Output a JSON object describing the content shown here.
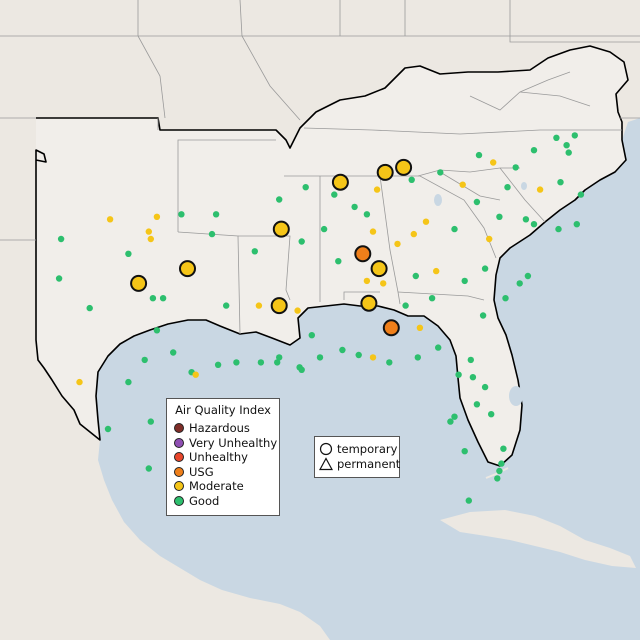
{
  "legend": {
    "title": "Air Quality Index",
    "categories": [
      {
        "label": "Hazardous",
        "color": "#7e2d27"
      },
      {
        "label": "Very Unhealthy",
        "color": "#8f4fb3"
      },
      {
        "label": "Unhealthy",
        "color": "#e8462b"
      },
      {
        "label": "USG",
        "color": "#ef7f1a"
      },
      {
        "label": "Moderate",
        "color": "#f5c518"
      },
      {
        "label": "Good",
        "color": "#2dbf6e"
      }
    ]
  },
  "type_legend": {
    "items": [
      {
        "label": "temporary",
        "shape": "circle-icon"
      },
      {
        "label": "permanent",
        "shape": "triangle-icon"
      }
    ]
  },
  "colors": {
    "water": "#c9d7e3",
    "land": "#ece8e2",
    "region_land": "#f1eeea",
    "border": "#000000"
  },
  "monitors": {
    "large": [
      {
        "lon": -88.1,
        "lat": 37.5,
        "aqi": "Moderate"
      },
      {
        "lon": -85.9,
        "lat": 37.9,
        "aqi": "Moderate"
      },
      {
        "lon": -85.0,
        "lat": 38.1,
        "aqi": "Moderate"
      },
      {
        "lon": -91.0,
        "lat": 35.6,
        "aqi": "Moderate"
      },
      {
        "lon": -95.6,
        "lat": 34.0,
        "aqi": "Moderate"
      },
      {
        "lon": -98.0,
        "lat": 33.4,
        "aqi": "Moderate"
      },
      {
        "lon": -91.1,
        "lat": 32.5,
        "aqi": "Moderate"
      },
      {
        "lon": -87.0,
        "lat": 34.6,
        "aqi": "USG"
      },
      {
        "lon": -86.2,
        "lat": 34.0,
        "aqi": "Moderate"
      },
      {
        "lon": -86.7,
        "lat": 32.6,
        "aqi": "Moderate"
      },
      {
        "lon": -85.6,
        "lat": 31.6,
        "aqi": "USG"
      }
    ],
    "small": [
      {
        "lon": -91.1,
        "lat": 36.8,
        "aqi": "Good"
      },
      {
        "lon": -89.8,
        "lat": 37.3,
        "aqi": "Good"
      },
      {
        "lon": -88.4,
        "lat": 37.0,
        "aqi": "Good"
      },
      {
        "lon": -86.3,
        "lat": 37.2,
        "aqi": "Moderate"
      },
      {
        "lon": -84.6,
        "lat": 37.6,
        "aqi": "Good"
      },
      {
        "lon": -83.2,
        "lat": 37.9,
        "aqi": "Good"
      },
      {
        "lon": -82.1,
        "lat": 37.4,
        "aqi": "Moderate"
      },
      {
        "lon": -81.3,
        "lat": 38.6,
        "aqi": "Good"
      },
      {
        "lon": -80.6,
        "lat": 38.3,
        "aqi": "Moderate"
      },
      {
        "lon": -79.5,
        "lat": 38.1,
        "aqi": "Good"
      },
      {
        "lon": -78.6,
        "lat": 38.8,
        "aqi": "Good"
      },
      {
        "lon": -77.5,
        "lat": 39.3,
        "aqi": "Good"
      },
      {
        "lon": -77.0,
        "lat": 39.0,
        "aqi": "Good"
      },
      {
        "lon": -76.6,
        "lat": 39.4,
        "aqi": "Good"
      },
      {
        "lon": -76.9,
        "lat": 38.7,
        "aqi": "Good"
      },
      {
        "lon": -77.3,
        "lat": 37.5,
        "aqi": "Good"
      },
      {
        "lon": -76.3,
        "lat": 37.0,
        "aqi": "Good"
      },
      {
        "lon": -78.3,
        "lat": 37.2,
        "aqi": "Moderate"
      },
      {
        "lon": -79.9,
        "lat": 37.3,
        "aqi": "Good"
      },
      {
        "lon": -81.4,
        "lat": 36.7,
        "aqi": "Good"
      },
      {
        "lon": -80.3,
        "lat": 36.1,
        "aqi": "Good"
      },
      {
        "lon": -79.0,
        "lat": 36.0,
        "aqi": "Good"
      },
      {
        "lon": -78.6,
        "lat": 35.8,
        "aqi": "Good"
      },
      {
        "lon": -77.4,
        "lat": 35.6,
        "aqi": "Good"
      },
      {
        "lon": -76.5,
        "lat": 35.8,
        "aqi": "Good"
      },
      {
        "lon": -80.8,
        "lat": 35.2,
        "aqi": "Moderate"
      },
      {
        "lon": -82.5,
        "lat": 35.6,
        "aqi": "Good"
      },
      {
        "lon": -83.9,
        "lat": 35.9,
        "aqi": "Moderate"
      },
      {
        "lon": -84.5,
        "lat": 35.4,
        "aqi": "Moderate"
      },
      {
        "lon": -85.3,
        "lat": 35.0,
        "aqi": "Moderate"
      },
      {
        "lon": -86.8,
        "lat": 36.2,
        "aqi": "Good"
      },
      {
        "lon": -87.4,
        "lat": 36.5,
        "aqi": "Good"
      },
      {
        "lon": -88.9,
        "lat": 35.6,
        "aqi": "Good"
      },
      {
        "lon": -90.0,
        "lat": 35.1,
        "aqi": "Good"
      },
      {
        "lon": -86.5,
        "lat": 35.5,
        "aqi": "Moderate"
      },
      {
        "lon": -88.2,
        "lat": 34.3,
        "aqi": "Good"
      },
      {
        "lon": -86.0,
        "lat": 33.4,
        "aqi": "Moderate"
      },
      {
        "lon": -86.8,
        "lat": 33.5,
        "aqi": "Moderate"
      },
      {
        "lon": -84.4,
        "lat": 33.7,
        "aqi": "Good"
      },
      {
        "lon": -83.4,
        "lat": 33.9,
        "aqi": "Moderate"
      },
      {
        "lon": -82.0,
        "lat": 33.5,
        "aqi": "Good"
      },
      {
        "lon": -81.0,
        "lat": 34.0,
        "aqi": "Good"
      },
      {
        "lon": -80.0,
        "lat": 32.8,
        "aqi": "Good"
      },
      {
        "lon": -79.3,
        "lat": 33.4,
        "aqi": "Good"
      },
      {
        "lon": -78.9,
        "lat": 33.7,
        "aqi": "Good"
      },
      {
        "lon": -81.1,
        "lat": 32.1,
        "aqi": "Good"
      },
      {
        "lon": -83.6,
        "lat": 32.8,
        "aqi": "Good"
      },
      {
        "lon": -84.9,
        "lat": 32.5,
        "aqi": "Good"
      },
      {
        "lon": -84.2,
        "lat": 31.6,
        "aqi": "Moderate"
      },
      {
        "lon": -83.3,
        "lat": 30.8,
        "aqi": "Good"
      },
      {
        "lon": -84.3,
        "lat": 30.4,
        "aqi": "Good"
      },
      {
        "lon": -85.7,
        "lat": 30.2,
        "aqi": "Good"
      },
      {
        "lon": -87.2,
        "lat": 30.5,
        "aqi": "Good"
      },
      {
        "lon": -88.0,
        "lat": 30.7,
        "aqi": "Good"
      },
      {
        "lon": -86.5,
        "lat": 30.4,
        "aqi": "Moderate"
      },
      {
        "lon": -81.7,
        "lat": 30.3,
        "aqi": "Good"
      },
      {
        "lon": -81.6,
        "lat": 29.6,
        "aqi": "Good"
      },
      {
        "lon": -81.0,
        "lat": 29.2,
        "aqi": "Good"
      },
      {
        "lon": -82.3,
        "lat": 29.7,
        "aqi": "Good"
      },
      {
        "lon": -81.4,
        "lat": 28.5,
        "aqi": "Good"
      },
      {
        "lon": -80.7,
        "lat": 28.1,
        "aqi": "Good"
      },
      {
        "lon": -82.5,
        "lat": 28.0,
        "aqi": "Good"
      },
      {
        "lon": -82.7,
        "lat": 27.8,
        "aqi": "Good"
      },
      {
        "lon": -82.0,
        "lat": 26.6,
        "aqi": "Good"
      },
      {
        "lon": -80.1,
        "lat": 26.7,
        "aqi": "Good"
      },
      {
        "lon": -80.2,
        "lat": 26.1,
        "aqi": "Good"
      },
      {
        "lon": -80.3,
        "lat": 25.8,
        "aqi": "Good"
      },
      {
        "lon": -80.4,
        "lat": 25.5,
        "aqi": "Good"
      },
      {
        "lon": -81.8,
        "lat": 24.6,
        "aqi": "Good"
      },
      {
        "lon": -89.1,
        "lat": 30.4,
        "aqi": "Good"
      },
      {
        "lon": -89.5,
        "lat": 31.3,
        "aqi": "Good"
      },
      {
        "lon": -90.2,
        "lat": 32.3,
        "aqi": "Moderate"
      },
      {
        "lon": -90.1,
        "lat": 30.0,
        "aqi": "Good"
      },
      {
        "lon": -90.0,
        "lat": 29.9,
        "aqi": "Good"
      },
      {
        "lon": -91.1,
        "lat": 30.4,
        "aqi": "Good"
      },
      {
        "lon": -91.2,
        "lat": 30.2,
        "aqi": "Good"
      },
      {
        "lon": -92.0,
        "lat": 30.2,
        "aqi": "Good"
      },
      {
        "lon": -93.2,
        "lat": 30.2,
        "aqi": "Good"
      },
      {
        "lon": -93.7,
        "lat": 32.5,
        "aqi": "Good"
      },
      {
        "lon": -92.1,
        "lat": 32.5,
        "aqi": "Moderate"
      },
      {
        "lon": -92.3,
        "lat": 34.7,
        "aqi": "Good"
      },
      {
        "lon": -94.4,
        "lat": 35.4,
        "aqi": "Good"
      },
      {
        "lon": -94.2,
        "lat": 36.2,
        "aqi": "Good"
      },
      {
        "lon": -95.9,
        "lat": 36.2,
        "aqi": "Good"
      },
      {
        "lon": -97.5,
        "lat": 35.5,
        "aqi": "Moderate"
      },
      {
        "lon": -97.4,
        "lat": 35.2,
        "aqi": "Moderate"
      },
      {
        "lon": -97.1,
        "lat": 36.1,
        "aqi": "Moderate"
      },
      {
        "lon": -98.5,
        "lat": 34.6,
        "aqi": "Good"
      },
      {
        "lon": -99.4,
        "lat": 36.0,
        "aqi": "Moderate"
      },
      {
        "lon": -101.8,
        "lat": 35.2,
        "aqi": "Good"
      },
      {
        "lon": -101.9,
        "lat": 33.6,
        "aqi": "Good"
      },
      {
        "lon": -100.4,
        "lat": 32.4,
        "aqi": "Good"
      },
      {
        "lon": -97.3,
        "lat": 32.8,
        "aqi": "Good"
      },
      {
        "lon": -96.8,
        "lat": 32.8,
        "aqi": "Good"
      },
      {
        "lon": -97.7,
        "lat": 30.3,
        "aqi": "Good"
      },
      {
        "lon": -98.5,
        "lat": 29.4,
        "aqi": "Good"
      },
      {
        "lon": -95.4,
        "lat": 29.8,
        "aqi": "Good"
      },
      {
        "lon": -95.2,
        "lat": 29.7,
        "aqi": "Moderate"
      },
      {
        "lon": -94.1,
        "lat": 30.1,
        "aqi": "Good"
      },
      {
        "lon": -97.4,
        "lat": 27.8,
        "aqi": "Good"
      },
      {
        "lon": -97.5,
        "lat": 25.9,
        "aqi": "Good"
      },
      {
        "lon": -99.5,
        "lat": 27.5,
        "aqi": "Good"
      },
      {
        "lon": -96.3,
        "lat": 30.6,
        "aqi": "Good"
      },
      {
        "lon": -100.9,
        "lat": 29.4,
        "aqi": "Moderate"
      },
      {
        "lon": -97.1,
        "lat": 31.5,
        "aqi": "Good"
      }
    ]
  }
}
